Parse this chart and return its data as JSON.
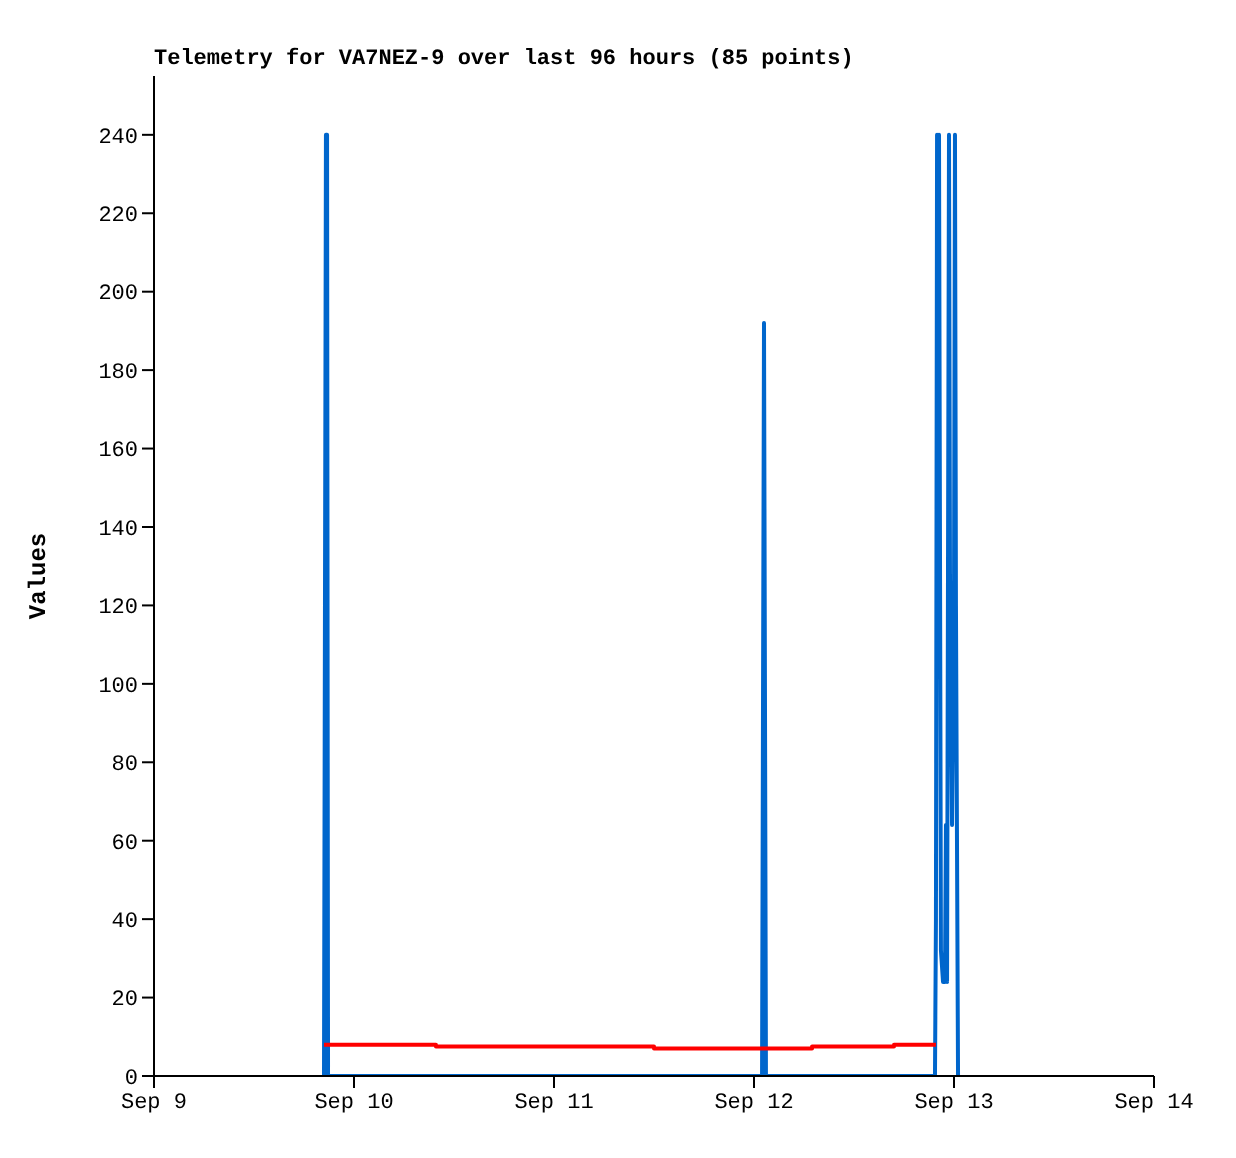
{
  "chart_data": {
    "type": "line",
    "title": "Telemetry for VA7NEZ-9 over last 96 hours (85 points)",
    "ylabel": "Values",
    "xlim": [
      "--09-09",
      "--09-14"
    ],
    "xticks": [
      {
        "value": "--09-09",
        "label": "Sep 9"
      },
      {
        "value": "--09-10",
        "label": "Sep 10"
      },
      {
        "value": "--09-11",
        "label": "Sep 11"
      },
      {
        "value": "--09-12",
        "label": "Sep 12"
      },
      {
        "value": "--09-13",
        "label": "Sep 13"
      },
      {
        "value": "--09-14",
        "label": "Sep 14"
      }
    ],
    "ylim": [
      0,
      255
    ],
    "yticks": [
      0,
      20,
      40,
      60,
      80,
      100,
      120,
      140,
      160,
      180,
      200,
      220,
      240
    ],
    "grid": false,
    "legend": false,
    "marker": "none",
    "line_style": "solid",
    "series": [
      {
        "color": "#0066cc",
        "x": [
          "--09-09T20:24",
          "--09-09T20:31",
          "--09-09T20:38",
          "--09-09T20:46",
          "--09-09T20:53",
          "--09-12T00:58",
          "--09-12T01:12",
          "--09-12T01:26",
          "--09-12T21:43",
          "--09-12T21:50",
          "--09-12T21:58",
          "--09-12T22:05",
          "--09-12T22:12",
          "--09-12T22:26",
          "--09-12T22:41",
          "--09-12T22:55",
          "--09-12T23:02",
          "--09-12T23:10",
          "--09-12T23:24",
          "--09-12T23:31",
          "--09-12T23:46",
          "--09-13T00:00",
          "--09-13T00:07",
          "--09-13T00:14",
          "--09-13T00:29"
        ],
        "values": [
          0,
          120,
          240,
          240,
          0,
          0,
          192,
          0,
          0,
          40,
          240,
          128,
          240,
          32,
          24,
          24,
          64,
          24,
          240,
          128,
          64,
          120,
          240,
          120,
          0
        ]
      },
      {
        "type": "step",
        "color": "#ff0000",
        "x": [
          "--09-09T20:24",
          "--09-10T09:50",
          "--09-11T12:00",
          "--09-12T06:58",
          "--09-12T16:48",
          "--09-12T21:50"
        ],
        "values": [
          8,
          7.5,
          7,
          7.5,
          8,
          8
        ]
      }
    ]
  }
}
